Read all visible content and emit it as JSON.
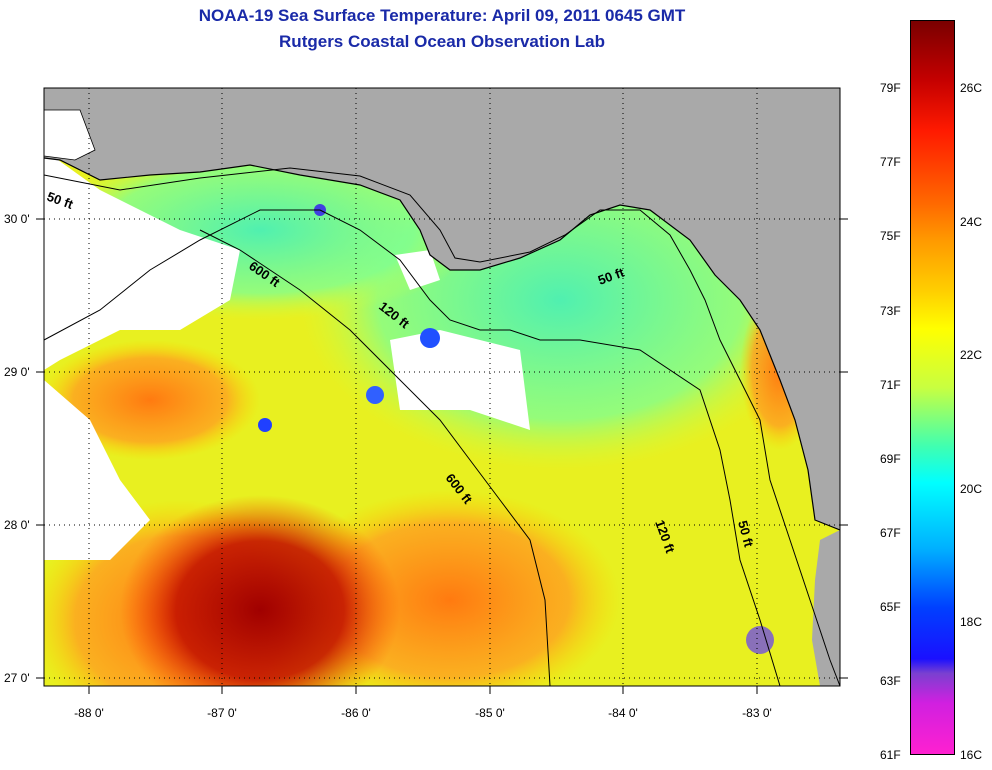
{
  "title": {
    "line1": "NOAA-19 Sea Surface Temperature:  April 09, 2011 0645 GMT",
    "line2": "Rutgers Coastal Ocean Observation Lab"
  },
  "map": {
    "lat_ticks": [
      "30 0'",
      "29 0'",
      "28 0'",
      "27 0'"
    ],
    "lon_ticks": [
      "-88 0'",
      "-87 0'",
      "-86 0'",
      "-85 0'",
      "-84 0'",
      "-83 0'"
    ],
    "contour_labels": [
      "50 ft",
      "600 ft",
      "120 ft",
      "50 ft",
      "600 ft",
      "120 ft",
      "50 ft"
    ],
    "colors": {
      "land": "#a9a9a9",
      "cloud": "#ffffff",
      "warm": "#c81400",
      "cool": "#40f0c0"
    }
  },
  "colorbar": {
    "fahrenheit": [
      "79F",
      "77F",
      "75F",
      "73F",
      "71F",
      "69F",
      "67F",
      "65F",
      "63F",
      "61F"
    ],
    "celsius": [
      "26C",
      "24C",
      "22C",
      "20C",
      "18C",
      "16C"
    ]
  }
}
